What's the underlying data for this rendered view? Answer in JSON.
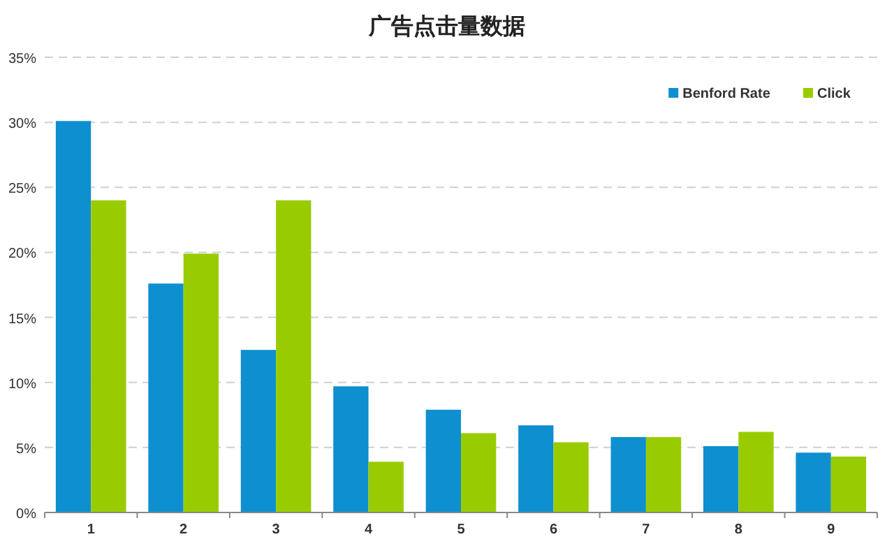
{
  "chart_data": {
    "type": "bar",
    "title": "广告点击量数据",
    "categories": [
      "1",
      "2",
      "3",
      "4",
      "5",
      "6",
      "7",
      "8",
      "9"
    ],
    "series": [
      {
        "name": "Benford Rate",
        "color": "#0e8fd0",
        "values": [
          30.1,
          17.6,
          12.5,
          9.7,
          7.9,
          6.7,
          5.8,
          5.1,
          4.6
        ]
      },
      {
        "name": "Click",
        "color": "#99cc00",
        "values": [
          24.0,
          19.9,
          24.0,
          3.9,
          6.1,
          5.4,
          5.8,
          6.2,
          4.3
        ]
      }
    ],
    "ylim": [
      0,
      35
    ],
    "yticks": [
      {
        "value": 0,
        "label": "0%"
      },
      {
        "value": 5,
        "label": "5%"
      },
      {
        "value": 10,
        "label": "10%"
      },
      {
        "value": 15,
        "label": "15%"
      },
      {
        "value": 20,
        "label": "20%"
      },
      {
        "value": 25,
        "label": "25%"
      },
      {
        "value": 30,
        "label": "30%"
      },
      {
        "value": 35,
        "label": "35%"
      }
    ],
    "grid": "y",
    "legend": "top right"
  }
}
